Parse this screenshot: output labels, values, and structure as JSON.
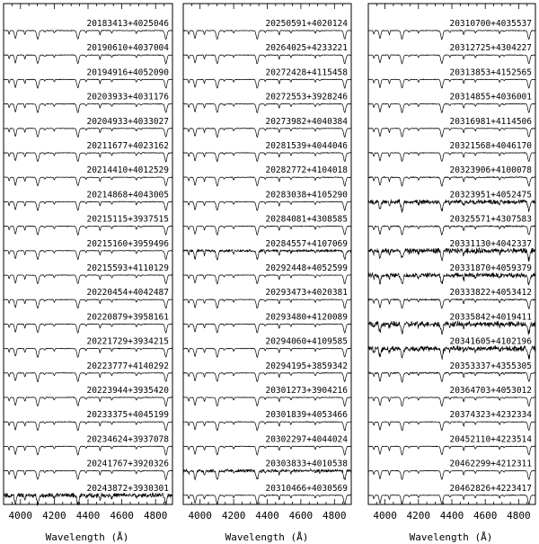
{
  "figure": {
    "x_label": "Wavelength (Å)",
    "x_tick_labels": [
      "4000",
      "4200",
      "4400",
      "4600",
      "4800"
    ]
  },
  "chart_data": [
    {
      "type": "line",
      "panel": 1,
      "xlabel": "Wavelength (Å)",
      "xlim": [
        3900,
        4900
      ],
      "ylabel": "",
      "normalized_offset_stack": true,
      "series": [
        {
          "name": "20183413+4025046",
          "noise": 0.02
        },
        {
          "name": "20190610+4037004",
          "noise": 0.02
        },
        {
          "name": "20194916+4052090",
          "noise": 0.02
        },
        {
          "name": "20203933+4031176",
          "noise": 0.02
        },
        {
          "name": "20204933+4033027",
          "noise": 0.02
        },
        {
          "name": "20211677+4023162",
          "noise": 0.02
        },
        {
          "name": "20214410+4012529",
          "noise": 0.02
        },
        {
          "name": "20214868+4043005",
          "noise": 0.02
        },
        {
          "name": "20215115+3937515",
          "noise": 0.02
        },
        {
          "name": "20215160+3959496",
          "noise": 0.02
        },
        {
          "name": "20215593+4110129",
          "noise": 0.02
        },
        {
          "name": "20220454+4042487",
          "noise": 0.02
        },
        {
          "name": "20220879+3958161",
          "noise": 0.02
        },
        {
          "name": "20221729+3934215",
          "noise": 0.02
        },
        {
          "name": "20223777+4140292",
          "noise": 0.02
        },
        {
          "name": "20223944+3935420",
          "noise": 0.02
        },
        {
          "name": "20233375+4045199",
          "noise": 0.02
        },
        {
          "name": "20234624+3937078",
          "noise": 0.02
        },
        {
          "name": "20241767+3920326",
          "noise": 0.02
        },
        {
          "name": "20243872+3930301",
          "noise": 0.12
        }
      ]
    },
    {
      "type": "line",
      "panel": 2,
      "xlabel": "Wavelength (Å)",
      "xlim": [
        3900,
        4900
      ],
      "ylabel": "",
      "normalized_offset_stack": true,
      "series": [
        {
          "name": "20250591+4020124",
          "noise": 0.02
        },
        {
          "name": "20264025+4233221",
          "noise": 0.02
        },
        {
          "name": "20272428+4115458",
          "noise": 0.02
        },
        {
          "name": "20272553+3928246",
          "noise": 0.02
        },
        {
          "name": "20273982+4040384",
          "noise": 0.02
        },
        {
          "name": "20281539+4044046",
          "noise": 0.02
        },
        {
          "name": "20282772+4104018",
          "noise": 0.02
        },
        {
          "name": "20283038+4105290",
          "noise": 0.02
        },
        {
          "name": "20284081+4308585",
          "noise": 0.02
        },
        {
          "name": "20284557+4107069",
          "noise": 0.07
        },
        {
          "name": "20292448+4052599",
          "noise": 0.02
        },
        {
          "name": "20293473+4020381",
          "noise": 0.02
        },
        {
          "name": "20293480+4120089",
          "noise": 0.02
        },
        {
          "name": "20294060+4109585",
          "noise": 0.02
        },
        {
          "name": "20294195+3859342",
          "noise": 0.02
        },
        {
          "name": "20301273+3904216",
          "noise": 0.02
        },
        {
          "name": "20301839+4053466",
          "noise": 0.02
        },
        {
          "name": "20302297+4044024",
          "noise": 0.02
        },
        {
          "name": "20303833+4010538",
          "noise": 0.09
        },
        {
          "name": "20310466+4030569",
          "noise": 0.02
        }
      ]
    },
    {
      "type": "line",
      "panel": 3,
      "xlabel": "Wavelength (Å)",
      "xlim": [
        3900,
        4900
      ],
      "ylabel": "",
      "normalized_offset_stack": true,
      "series": [
        {
          "name": "20310700+4035537",
          "noise": 0.02
        },
        {
          "name": "20312725+4304227",
          "noise": 0.02
        },
        {
          "name": "20313853+4152565",
          "noise": 0.02
        },
        {
          "name": "20314855+4036001",
          "noise": 0.02
        },
        {
          "name": "20316981+4114506",
          "noise": 0.02
        },
        {
          "name": "20321568+4046170",
          "noise": 0.02
        },
        {
          "name": "20323906+4100078",
          "noise": 0.03
        },
        {
          "name": "20323951+4052475",
          "noise": 0.12
        },
        {
          "name": "20325571+4307583",
          "noise": 0.04
        },
        {
          "name": "20331130+4042337",
          "noise": 0.14
        },
        {
          "name": "20331870+4059379",
          "noise": 0.12
        },
        {
          "name": "20333822+4053412",
          "noise": 0.04
        },
        {
          "name": "20335842+4019411",
          "noise": 0.15
        },
        {
          "name": "20341605+4102196",
          "noise": 0.14
        },
        {
          "name": "20353337+4355305",
          "noise": 0.04
        },
        {
          "name": "20364703+4053012",
          "noise": 0.02
        },
        {
          "name": "20374323+4232334",
          "noise": 0.02
        },
        {
          "name": "20452110+4223514",
          "noise": 0.02
        },
        {
          "name": "20462299+4212311",
          "noise": 0.02
        },
        {
          "name": "20462826+4223417",
          "noise": 0.02
        }
      ]
    }
  ]
}
